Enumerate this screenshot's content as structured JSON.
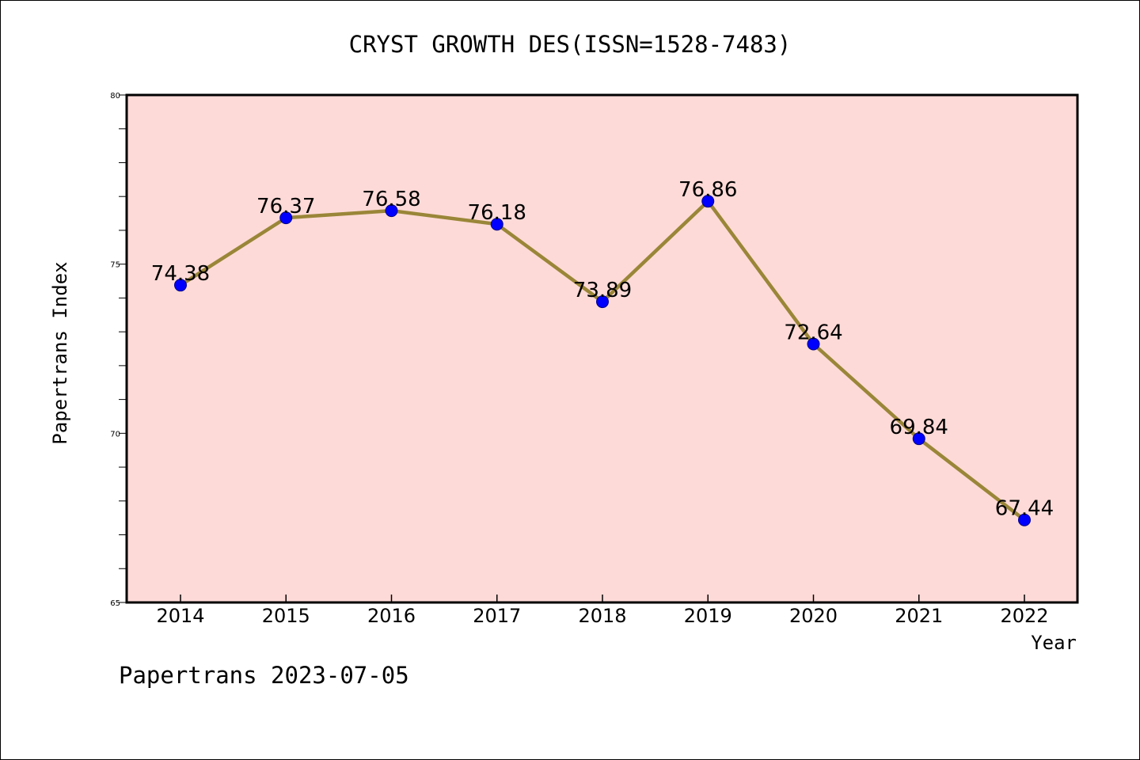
{
  "chart_data": {
    "type": "line",
    "title": "CRYST GROWTH DES(ISSN=1528-7483)",
    "xlabel": "Year",
    "ylabel": "Papertrans Index",
    "categories": [
      "2014",
      "2015",
      "2016",
      "2017",
      "2018",
      "2019",
      "2020",
      "2021",
      "2022"
    ],
    "series": [
      {
        "values": [
          74.38,
          76.37,
          76.58,
          76.18,
          73.89,
          76.86,
          72.64,
          69.84,
          67.44
        ],
        "labels": [
          "74.38",
          "76.37",
          "76.58",
          "76.18",
          "73.89",
          "76.86",
          "72.64",
          "69.84",
          "67.44"
        ]
      }
    ],
    "ylim": [
      65,
      80
    ],
    "yticks": [
      "65",
      "70",
      "75",
      "80"
    ],
    "grid": false,
    "legend": "none",
    "colors": {
      "plot_background": "#fddad7",
      "line": "#9a8638",
      "marker": "#0000ff",
      "marker_edge": "#00008b"
    }
  },
  "footer": {
    "text": "Papertrans 2023-07-05"
  }
}
